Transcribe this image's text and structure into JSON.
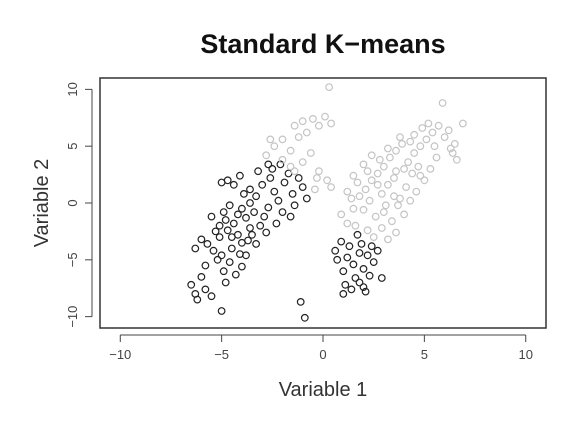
{
  "chart_data": {
    "type": "scatter",
    "title": "Standard K−means",
    "xlabel": "Variable 1",
    "ylabel": "Variable 2",
    "xlim": [
      -11,
      11
    ],
    "ylim": [
      -11,
      11
    ],
    "xticks": [
      "−10",
      "−5",
      "0",
      "5",
      "10"
    ],
    "xtick_values": [
      -10,
      -5,
      0,
      5,
      10
    ],
    "yticks": [
      "−10",
      "−5",
      "0",
      "5",
      "10"
    ],
    "ytick_values": [
      -10,
      -5,
      0,
      5,
      10
    ],
    "grid": false,
    "legend": "none",
    "series": [
      {
        "color": "#222222",
        "points": [
          [
            -6.5,
            -7.2
          ],
          [
            -6.3,
            -8.0
          ],
          [
            -6.0,
            -6.5
          ],
          [
            -5.8,
            -7.6
          ],
          [
            -6.2,
            -8.5
          ],
          [
            -5.5,
            -8.2
          ],
          [
            -5.0,
            -9.5
          ],
          [
            -4.8,
            -7.0
          ],
          [
            -6.3,
            -4.0
          ],
          [
            -6.0,
            -3.2
          ],
          [
            -5.7,
            -3.6
          ],
          [
            -5.4,
            -4.2
          ],
          [
            -5.1,
            -3.0
          ],
          [
            -5.2,
            -5.0
          ],
          [
            -5.8,
            -5.5
          ],
          [
            -4.9,
            -6.0
          ],
          [
            -4.6,
            -5.2
          ],
          [
            -4.5,
            -4.0
          ],
          [
            -4.3,
            -6.3
          ],
          [
            -4.0,
            -5.6
          ],
          [
            -4.2,
            -2.8
          ],
          [
            -4.0,
            -3.5
          ],
          [
            -3.8,
            -4.6
          ],
          [
            -3.6,
            -2.2
          ],
          [
            -5.1,
            -2.0
          ],
          [
            -4.8,
            -1.5
          ],
          [
            -4.9,
            -0.8
          ],
          [
            -4.6,
            -0.2
          ],
          [
            -4.4,
            -1.8
          ],
          [
            -4.2,
            -1.0
          ],
          [
            -4.0,
            -0.5
          ],
          [
            -3.8,
            -1.3
          ],
          [
            -3.6,
            0.0
          ],
          [
            -3.5,
            -2.8
          ],
          [
            -3.3,
            -3.6
          ],
          [
            -3.1,
            -2.0
          ],
          [
            -2.9,
            -1.2
          ],
          [
            -2.7,
            -0.4
          ],
          [
            -3.3,
            0.6
          ],
          [
            -3.6,
            1.2
          ],
          [
            -3.0,
            1.6
          ],
          [
            -2.6,
            2.2
          ],
          [
            -2.4,
            1.0
          ],
          [
            -2.2,
            0.2
          ],
          [
            -2.0,
            -0.8
          ],
          [
            -2.3,
            -1.8
          ],
          [
            -1.9,
            1.8
          ],
          [
            -1.7,
            2.6
          ],
          [
            -1.5,
            0.8
          ],
          [
            -1.4,
            -0.2
          ],
          [
            -1.6,
            -1.2
          ],
          [
            -2.5,
            3.0
          ],
          [
            -2.1,
            3.4
          ],
          [
            -1.2,
            2.2
          ],
          [
            -1.0,
            1.4
          ],
          [
            -0.8,
            0.4
          ],
          [
            -4.4,
            1.6
          ],
          [
            -4.7,
            2.0
          ],
          [
            -5.0,
            1.8
          ],
          [
            -4.1,
            2.4
          ],
          [
            -3.9,
            0.8
          ],
          [
            -3.4,
            -0.8
          ],
          [
            -2.8,
            -2.6
          ],
          [
            -4.5,
            -3.0
          ],
          [
            -5.5,
            -1.2
          ],
          [
            -5.3,
            -2.5
          ],
          [
            -3.2,
            2.8
          ],
          [
            -2.7,
            3.4
          ],
          [
            -3.7,
            -3.3
          ],
          [
            -4.1,
            -4.5
          ],
          [
            -5.0,
            -4.6
          ],
          [
            -4.7,
            -2.4
          ],
          [
            -1.1,
            -8.7
          ],
          [
            -0.9,
            -10.1
          ],
          [
            0.6,
            -4.2
          ],
          [
            0.7,
            -5.0
          ],
          [
            1.0,
            -6.0
          ],
          [
            1.2,
            -4.8
          ],
          [
            1.3,
            -3.8
          ],
          [
            1.5,
            -5.4
          ],
          [
            1.6,
            -6.6
          ],
          [
            1.8,
            -4.4
          ],
          [
            1.9,
            -3.6
          ],
          [
            2.0,
            -5.8
          ],
          [
            2.2,
            -4.6
          ],
          [
            2.4,
            -3.8
          ],
          [
            2.5,
            -5.2
          ],
          [
            2.7,
            -4.2
          ],
          [
            1.1,
            -7.2
          ],
          [
            1.4,
            -7.6
          ],
          [
            2.0,
            -7.4
          ],
          [
            2.1,
            -7.8
          ],
          [
            0.9,
            -3.4
          ],
          [
            1.7,
            -2.8
          ],
          [
            2.3,
            -6.4
          ],
          [
            1.0,
            -8.0
          ],
          [
            2.9,
            -6.6
          ],
          [
            1.8,
            -7.0
          ]
        ]
      },
      {
        "color": "#c4c4c4",
        "points": [
          [
            -2.8,
            4.2
          ],
          [
            -2.4,
            5.0
          ],
          [
            -2.0,
            5.6
          ],
          [
            -1.6,
            4.6
          ],
          [
            -1.2,
            5.8
          ],
          [
            -0.8,
            6.2
          ],
          [
            -0.5,
            7.4
          ],
          [
            -0.2,
            6.8
          ],
          [
            0.1,
            7.6
          ],
          [
            0.4,
            7.0
          ],
          [
            -1.4,
            6.8
          ],
          [
            -2.0,
            3.8
          ],
          [
            -1.6,
            3.2
          ],
          [
            -1.0,
            3.6
          ],
          [
            -0.6,
            4.4
          ],
          [
            -0.2,
            2.8
          ],
          [
            0.2,
            2.0
          ],
          [
            0.4,
            1.4
          ],
          [
            -0.4,
            1.2
          ],
          [
            -1.4,
            2.8
          ],
          [
            -1.0,
            7.2
          ],
          [
            -2.6,
            5.6
          ],
          [
            0.3,
            10.2
          ],
          [
            -0.3,
            2.2
          ],
          [
            0.9,
            -1.0
          ],
          [
            1.2,
            -1.8
          ],
          [
            1.5,
            -0.5
          ],
          [
            1.8,
            0.6
          ],
          [
            2.1,
            1.2
          ],
          [
            2.4,
            2.0
          ],
          [
            2.7,
            2.6
          ],
          [
            3.0,
            3.2
          ],
          [
            3.3,
            4.0
          ],
          [
            3.6,
            4.6
          ],
          [
            3.9,
            5.2
          ],
          [
            4.2,
            3.6
          ],
          [
            4.5,
            4.4
          ],
          [
            4.8,
            5.0
          ],
          [
            5.1,
            5.6
          ],
          [
            5.4,
            6.2
          ],
          [
            5.7,
            6.8
          ],
          [
            6.0,
            5.8
          ],
          [
            6.3,
            4.8
          ],
          [
            6.6,
            3.8
          ],
          [
            6.9,
            7.0
          ],
          [
            2.0,
            -0.6
          ],
          [
            2.3,
            0.2
          ],
          [
            2.6,
            -1.2
          ],
          [
            2.9,
            0.8
          ],
          [
            3.2,
            1.6
          ],
          [
            3.5,
            2.2
          ],
          [
            3.8,
            0.4
          ],
          [
            4.1,
            1.4
          ],
          [
            4.4,
            2.6
          ],
          [
            4.7,
            3.2
          ],
          [
            5.0,
            2.0
          ],
          [
            5.3,
            3.0
          ],
          [
            5.6,
            4.0
          ],
          [
            3.0,
            -0.8
          ],
          [
            3.4,
            -1.6
          ],
          [
            3.7,
            -0.2
          ],
          [
            4.0,
            -1.0
          ],
          [
            4.3,
            0.2
          ],
          [
            4.6,
            1.0
          ],
          [
            1.4,
            0.4
          ],
          [
            1.7,
            1.8
          ],
          [
            2.2,
            2.8
          ],
          [
            2.8,
            3.8
          ],
          [
            3.2,
            4.8
          ],
          [
            3.6,
            2.8
          ],
          [
            4.0,
            3.0
          ],
          [
            4.3,
            5.4
          ],
          [
            1.6,
            -2.0
          ],
          [
            2.2,
            -2.4
          ],
          [
            2.9,
            -2.2
          ],
          [
            3.6,
            -2.6
          ],
          [
            2.5,
            -3.0
          ],
          [
            3.2,
            -3.2
          ],
          [
            1.5,
            2.4
          ],
          [
            2.4,
            4.2
          ],
          [
            5.9,
            8.8
          ],
          [
            6.2,
            6.4
          ],
          [
            5.2,
            7.0
          ],
          [
            4.9,
            6.6
          ],
          [
            6.5,
            5.2
          ],
          [
            1.2,
            1.0
          ],
          [
            3.8,
            5.8
          ],
          [
            2.7,
            1.6
          ],
          [
            3.5,
            0.6
          ],
          [
            4.8,
            2.4
          ],
          [
            5.5,
            5.0
          ],
          [
            4.5,
            6.0
          ],
          [
            2.0,
            3.4
          ],
          [
            3.1,
            -0.2
          ],
          [
            6.4,
            4.4
          ]
        ]
      }
    ]
  }
}
